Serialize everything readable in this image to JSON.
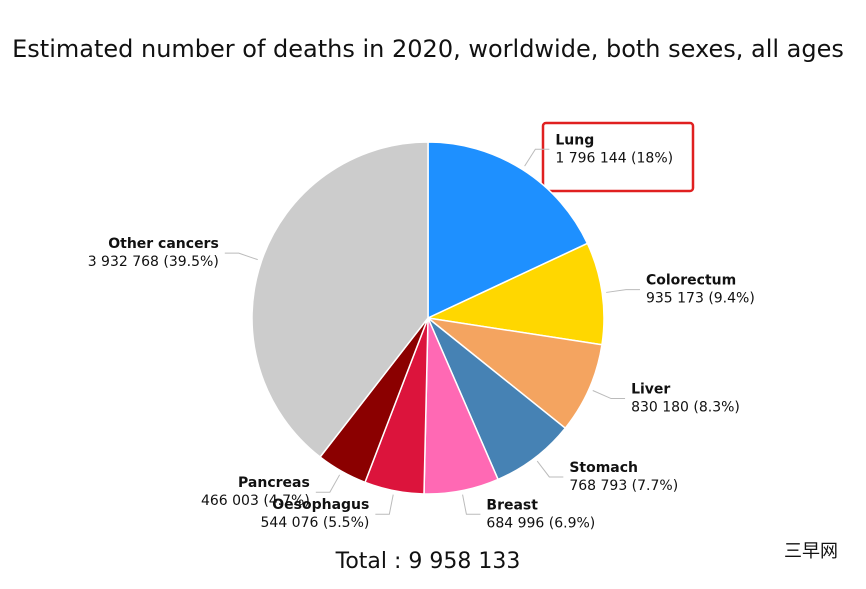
{
  "chart_data": {
    "type": "pie",
    "title": "Estimated number of deaths in 2020, worldwide, both sexes, all ages",
    "categories": [
      "Lung",
      "Colorectum",
      "Liver",
      "Stomach",
      "Breast",
      "Oesophagus",
      "Pancreas",
      "Other cancers"
    ],
    "values": [
      1796144,
      935173,
      830180,
      768793,
      684996,
      544076,
      466003,
      3932768
    ],
    "value_labels": [
      "1 796 144 (18%)",
      "935 173 (9.4%)",
      "830 180 (8.3%)",
      "768 793 (7.7%)",
      "684 996 (6.9%)",
      "544 076 (5.5%)",
      "466 003 (4.7%)",
      "3 932 768 (39.5%)"
    ],
    "colors": [
      "#1e90ff",
      "#ffd700",
      "#f4a460",
      "#4682b4",
      "#ff69b4",
      "#dc143c",
      "#8b0000",
      "#cccccc"
    ],
    "total_label": "Total : 9 958 133",
    "watermark": "三早网"
  }
}
